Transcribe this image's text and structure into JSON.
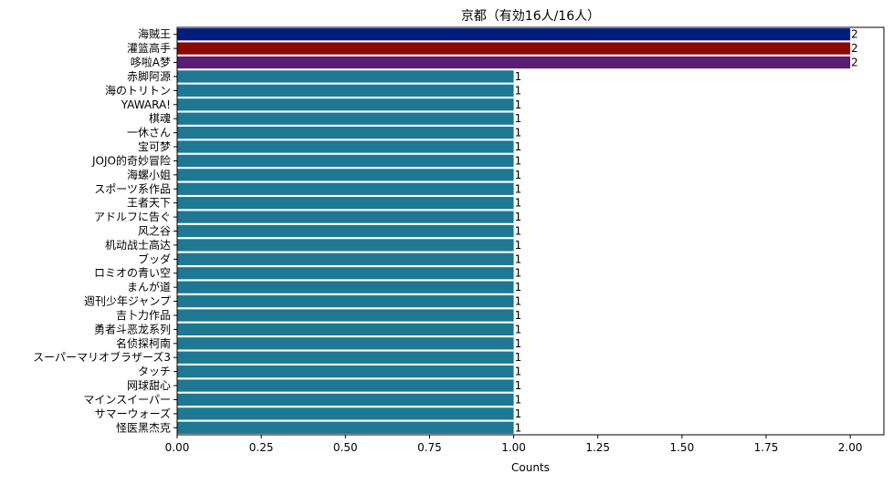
{
  "chart_data": {
    "type": "bar",
    "orientation": "horizontal",
    "title": "京都（有効16人/16人）",
    "xlabel": "Counts",
    "ylabel": "",
    "xlim": [
      0,
      2.1
    ],
    "xticks": [
      "0.00",
      "0.25",
      "0.50",
      "0.75",
      "1.00",
      "1.25",
      "1.50",
      "1.75",
      "2.00"
    ],
    "grid": false,
    "legend": "none",
    "categories": [
      "海贼王",
      "灌篮高手",
      "哆啦A梦",
      "赤脚阿源",
      "海のトリトン",
      "YAWARA!",
      "棋魂",
      "一休さん",
      "宝可梦",
      "JOJO的奇妙冒险",
      "海螺小姐",
      "スポーツ系作品",
      "王者天下",
      "アドルフに告ぐ",
      "风之谷",
      "机动战士高达",
      "ブッダ",
      "ロミオの青い空",
      "まんが道",
      "週刊少年ジャンプ",
      "吉卜力作品",
      "勇者斗恶龙系列",
      "名侦探柯南",
      "スーパーマリオブラザーズ3",
      "タッチ",
      "网球甜心",
      "マインスイーパー",
      "サマーウォーズ",
      "怪医黑杰克"
    ],
    "values": [
      2,
      2,
      2,
      1,
      1,
      1,
      1,
      1,
      1,
      1,
      1,
      1,
      1,
      1,
      1,
      1,
      1,
      1,
      1,
      1,
      1,
      1,
      1,
      1,
      1,
      1,
      1,
      1,
      1
    ],
    "bar_colors": [
      "#001c7f",
      "#8c0800",
      "#591e71",
      "#1d7893",
      "#1d7893",
      "#1d7893",
      "#1d7893",
      "#1d7893",
      "#1d7893",
      "#1d7893",
      "#1d7893",
      "#1d7893",
      "#1d7893",
      "#1d7893",
      "#1d7893",
      "#1d7893",
      "#1d7893",
      "#1d7893",
      "#1d7893",
      "#1d7893",
      "#1d7893",
      "#1d7893",
      "#1d7893",
      "#1d7893",
      "#1d7893",
      "#1d7893",
      "#1d7893",
      "#1d7893",
      "#1d7893"
    ],
    "data_labels": [
      "2",
      "2",
      "2",
      "1",
      "1",
      "1",
      "1",
      "1",
      "1",
      "1",
      "1",
      "1",
      "1",
      "1",
      "1",
      "1",
      "1",
      "1",
      "1",
      "1",
      "1",
      "1",
      "1",
      "1",
      "1",
      "1",
      "1",
      "1",
      "1"
    ]
  }
}
